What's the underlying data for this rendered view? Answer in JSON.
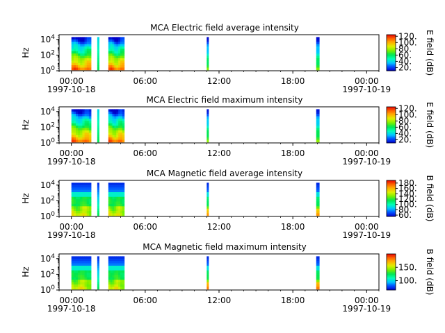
{
  "colors": {
    "colormap": [
      "#0000c8",
      "#0050ff",
      "#00c8ff",
      "#00ffb4",
      "#00e650",
      "#78f000",
      "#dcf000",
      "#ffb400",
      "#ff6400",
      "#e60000"
    ]
  },
  "chart_data": [
    {
      "type": "heatmap",
      "title": "MCA  Electric field average intensity",
      "ylabel": "Hz",
      "colorbar_label": "E field (dB)",
      "colorbar_ticks": [
        "20.",
        "40.",
        "60.",
        "80.",
        "100.",
        "120."
      ],
      "colorbar_range": [
        10,
        125
      ],
      "x_ticks": [
        "00:00",
        "06:00",
        "12:00",
        "18:00",
        "00:00"
      ],
      "x_ticks_hours": [
        0,
        6,
        12,
        18,
        24
      ],
      "x_dates": [
        "1997-10-18",
        "1997-10-19"
      ],
      "xlim_hours": [
        -1,
        25
      ],
      "y_ticks": [
        "10^0",
        "10^2",
        "10^4"
      ],
      "ylim_log10": [
        0,
        4.6
      ],
      "data_intervals_hours": [
        [
          0.0,
          1.6
        ],
        [
          2.1,
          2.25
        ],
        [
          3.0,
          4.3
        ],
        [
          11.0,
          11.15
        ],
        [
          19.9,
          20.15
        ]
      ]
    },
    {
      "type": "heatmap",
      "title": "MCA  Electric field maximum intensity",
      "ylabel": "Hz",
      "colorbar_label": "E field (dB)",
      "colorbar_ticks": [
        "20.",
        "40.",
        "60.",
        "80.",
        "100.",
        "120."
      ],
      "colorbar_range": [
        10,
        125
      ],
      "x_ticks": [
        "00:00",
        "06:00",
        "12:00",
        "18:00",
        "00:00"
      ],
      "x_ticks_hours": [
        0,
        6,
        12,
        18,
        24
      ],
      "x_dates": [
        "1997-10-18",
        "1997-10-19"
      ],
      "xlim_hours": [
        -1,
        25
      ],
      "y_ticks": [
        "10^0",
        "10^2",
        "10^4"
      ],
      "ylim_log10": [
        0,
        4.6
      ],
      "data_intervals_hours": [
        [
          0.0,
          1.6
        ],
        [
          2.1,
          2.25
        ],
        [
          3.0,
          4.3
        ],
        [
          11.0,
          11.15
        ],
        [
          19.9,
          20.15
        ]
      ]
    },
    {
      "type": "heatmap",
      "title": "MCA  Magnetic field average intensity",
      "ylabel": "Hz",
      "colorbar_label": "B field (dB)",
      "colorbar_ticks": [
        "60.",
        "80.",
        "100.",
        "120.",
        "140.",
        "160.",
        "180."
      ],
      "colorbar_range": [
        55,
        190
      ],
      "x_ticks": [
        "00:00",
        "06:00",
        "12:00",
        "18:00",
        "00:00"
      ],
      "x_ticks_hours": [
        0,
        6,
        12,
        18,
        24
      ],
      "x_dates": [
        "1997-10-18",
        "1997-10-19"
      ],
      "xlim_hours": [
        -1,
        25
      ],
      "y_ticks": [
        "10^0",
        "10^2",
        "10^4"
      ],
      "ylim_log10": [
        0,
        4.6
      ],
      "data_intervals_hours": [
        [
          0.0,
          1.6
        ],
        [
          2.1,
          2.25
        ],
        [
          3.0,
          4.3
        ],
        [
          11.0,
          11.15
        ],
        [
          19.9,
          20.15
        ]
      ]
    },
    {
      "type": "heatmap",
      "title": "MCA  Magnetic field maximum intensity",
      "ylabel": "Hz",
      "colorbar_label": "B field (dB)",
      "colorbar_ticks": [
        "100.",
        "150."
      ],
      "colorbar_range": [
        65,
        200
      ],
      "x_ticks": [
        "00:00",
        "06:00",
        "12:00",
        "18:00",
        "00:00"
      ],
      "x_ticks_hours": [
        0,
        6,
        12,
        18,
        24
      ],
      "x_dates": [
        "1997-10-18",
        "1997-10-19"
      ],
      "xlim_hours": [
        -1,
        25
      ],
      "y_ticks": [
        "10^0",
        "10^2",
        "10^4"
      ],
      "ylim_log10": [
        0,
        4.6
      ],
      "data_intervals_hours": [
        [
          0.0,
          1.6
        ],
        [
          2.1,
          2.25
        ],
        [
          3.0,
          4.3
        ],
        [
          11.0,
          11.15
        ],
        [
          19.9,
          20.15
        ]
      ]
    }
  ]
}
